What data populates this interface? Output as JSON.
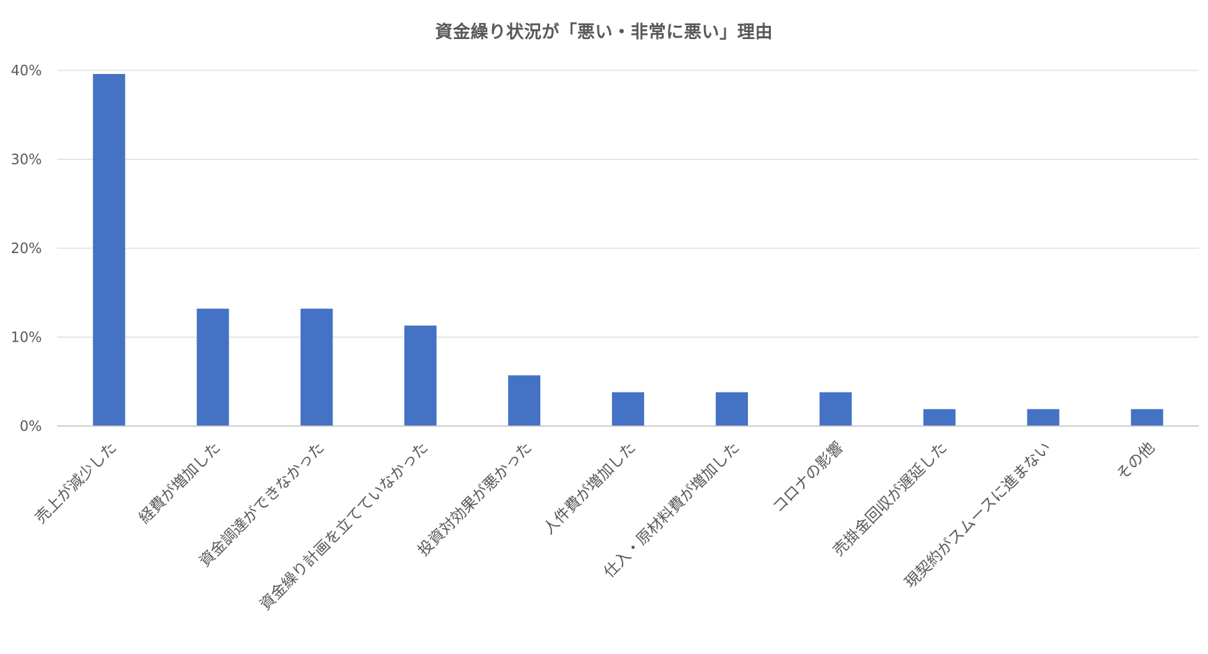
{
  "chart_data": {
    "type": "bar",
    "title": "資金繰り状況が「悪い・非常に悪い」理由",
    "xlabel": "",
    "ylabel": "",
    "categories": [
      "売上が減少した",
      "経費が増加した",
      "資金調達ができなかった",
      "資金繰り計画を立てていなかった",
      "投資対効果が悪かった",
      "人件費が増加した",
      "仕入・原材料費が増加した",
      "コロナの影響",
      "売掛金回収が遅延した",
      "現契約がスムースに進まない",
      "その他"
    ],
    "values": [
      39.6,
      13.2,
      13.2,
      11.3,
      5.7,
      3.8,
      3.8,
      3.8,
      1.9,
      1.9,
      1.9
    ],
    "ylim": [
      0,
      40
    ],
    "yticks": [
      0,
      10,
      20,
      30,
      40
    ],
    "ytick_labels": [
      "0%",
      "10%",
      "20%",
      "30%",
      "40%"
    ],
    "grid": true,
    "legend": "none",
    "colors": {
      "bar": "#4472C4",
      "grid": "#d9d9d9",
      "axis": "#bfbfbf",
      "text": "#595959"
    }
  }
}
